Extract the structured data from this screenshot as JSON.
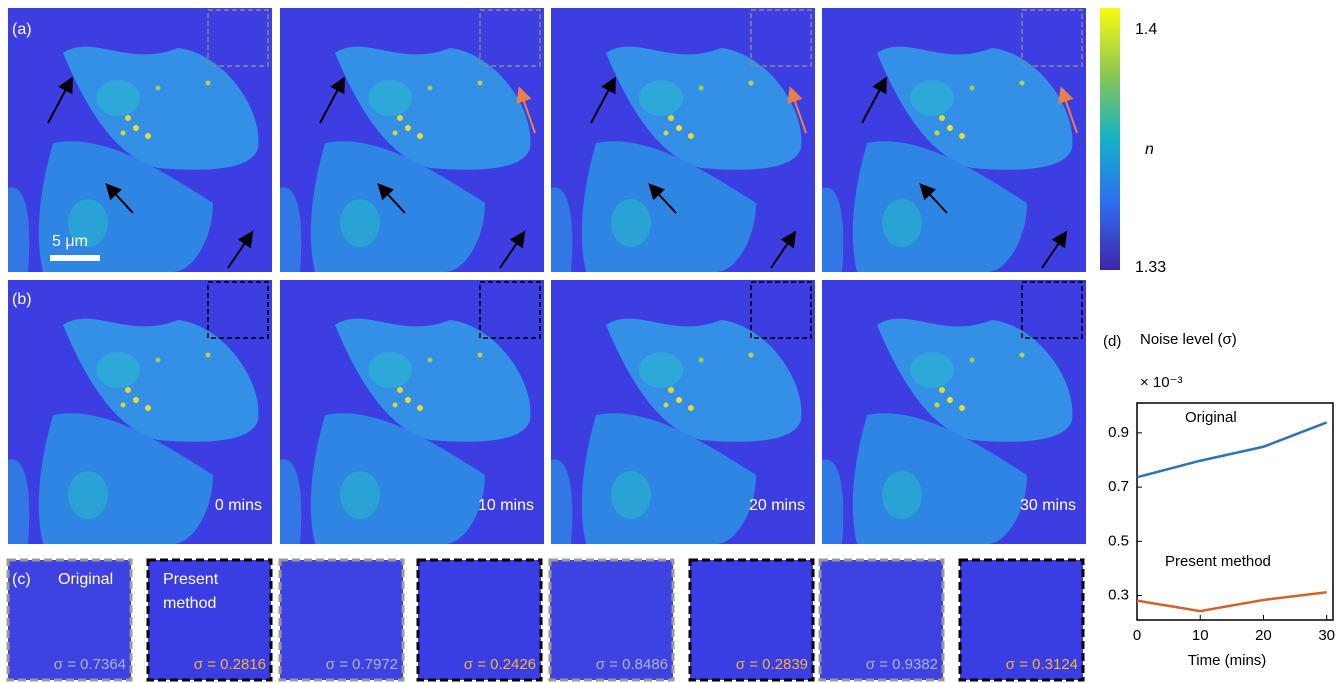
{
  "panels": {
    "a": {
      "label": "(a)",
      "scale_bar": "5 μm"
    },
    "b": {
      "label": "(b)",
      "times": [
        "0 mins",
        "10 mins",
        "20 mins",
        "30 mins"
      ]
    },
    "c": {
      "label": "(c)",
      "original": "Original",
      "present": [
        "Present",
        "method"
      ],
      "sigmas": [
        "σ = 0.7364",
        "σ = 0.2816",
        "σ = 0.7972",
        "σ = 0.2426",
        "σ = 0.8486",
        "σ = 0.2839",
        "σ = 0.9382",
        "σ = 0.3124"
      ]
    }
  },
  "colorbar": {
    "max": 1.4,
    "min": 1.33,
    "label": "n"
  },
  "chart_data": {
    "type": "line",
    "panel_label": "(d)",
    "title": "Noise level (σ)",
    "exponent": "× 10⁻³",
    "x_label": "Time (mins)",
    "x": [
      0,
      10,
      20,
      30
    ],
    "xlim": [
      0,
      31
    ],
    "xticks": [
      0,
      10,
      20,
      30
    ],
    "ylim": [
      0.21,
      1.01
    ],
    "yticks": [
      0.3,
      0.5,
      0.7,
      0.9
    ],
    "series": [
      {
        "name": "Original",
        "color": "#2f75b5",
        "values": [
          0.7364,
          0.7972,
          0.8486,
          0.9382
        ]
      },
      {
        "name": "Present method",
        "color": "#d4602a",
        "values": [
          0.2816,
          0.2426,
          0.2839,
          0.3124
        ]
      }
    ]
  }
}
